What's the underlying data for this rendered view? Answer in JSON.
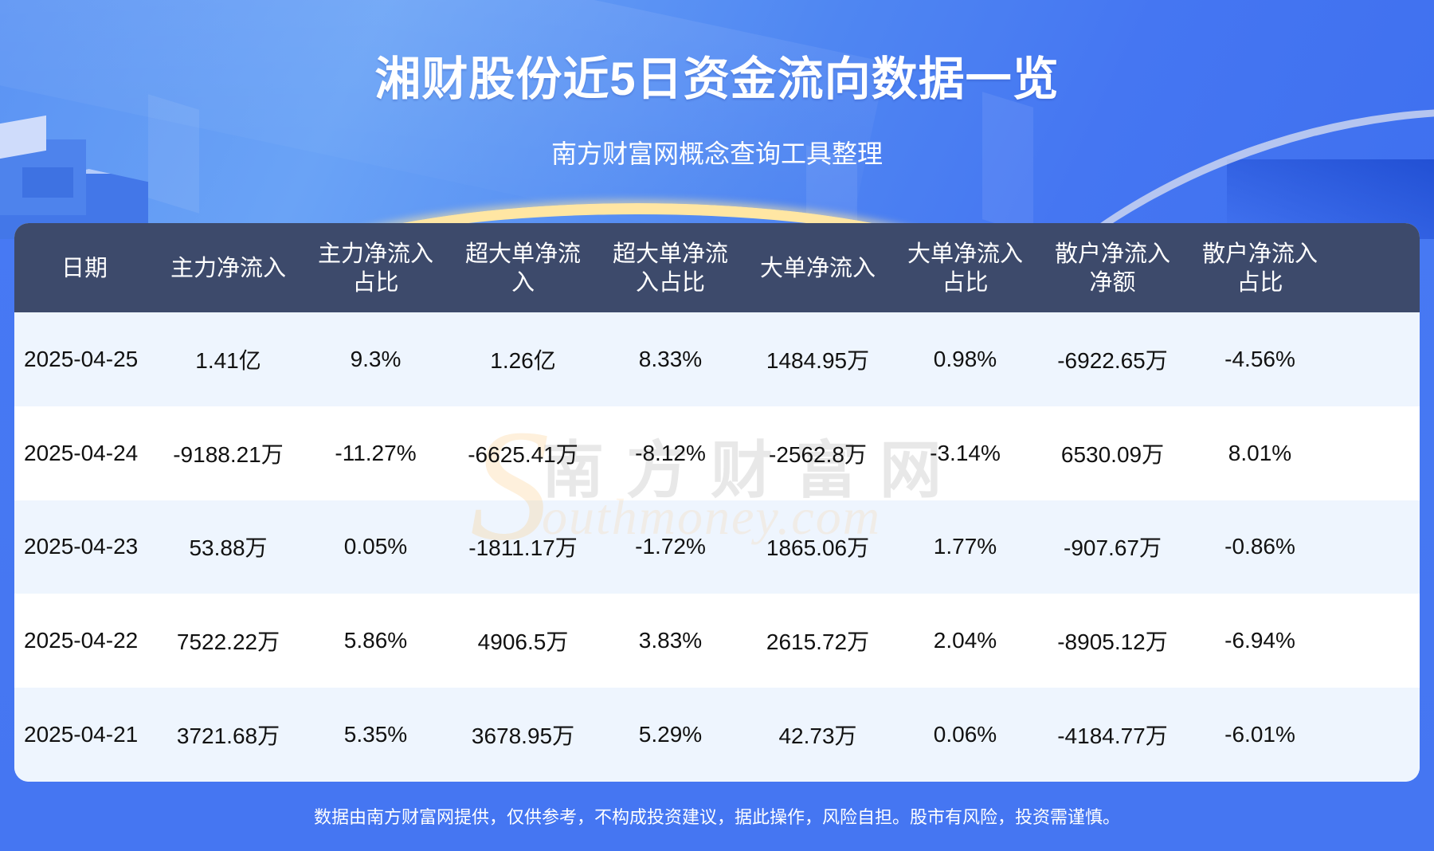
{
  "header": {
    "title": "湘财股份近5日资金流向数据一览",
    "subtitle": "南方财富网概念查询工具整理"
  },
  "table": {
    "columns": [
      "日期",
      "主力净流入",
      "主力净流入\n占比",
      "超大单净流\n入",
      "超大单净流\n入占比",
      "大单净流入",
      "大单净流入\n占比",
      "散户净流入\n净额",
      "散户净流入\n占比"
    ],
    "rows": [
      [
        "2025-04-25",
        "1.41亿",
        "9.3%",
        "1.26亿",
        "8.33%",
        "1484.95万",
        "0.98%",
        "-6922.65万",
        "-4.56%"
      ],
      [
        "2025-04-24",
        "-9188.21万",
        "-11.27%",
        "-6625.41万",
        "-8.12%",
        "-2562.8万",
        "-3.14%",
        "6530.09万",
        "8.01%"
      ],
      [
        "2025-04-23",
        "53.88万",
        "0.05%",
        "-1811.17万",
        "-1.72%",
        "1865.06万",
        "1.77%",
        "-907.67万",
        "-0.86%"
      ],
      [
        "2025-04-22",
        "7522.22万",
        "5.86%",
        "4906.5万",
        "3.83%",
        "2615.72万",
        "2.04%",
        "-8905.12万",
        "-6.94%"
      ],
      [
        "2025-04-21",
        "3721.68万",
        "5.35%",
        "3678.95万",
        "5.29%",
        "42.73万",
        "0.06%",
        "-4184.77万",
        "-6.01%"
      ]
    ]
  },
  "watermark": {
    "initial": "S",
    "cn": "南方财富网",
    "en": "outhmoney.com"
  },
  "footer": {
    "disclaimer": "数据由南方财富网提供，仅供参考，不构成投资建议，据此操作，风险自担。股市有风险，投资需谨慎。"
  },
  "colors": {
    "background": "#4576f2",
    "header_row": "#3d4a6b",
    "row_odd": "#eef5fe",
    "row_even": "#ffffff",
    "text": "#111111"
  }
}
